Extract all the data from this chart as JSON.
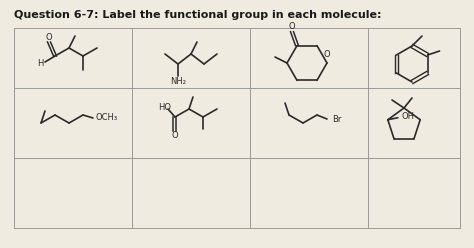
{
  "title_fontsize": 8,
  "title_fontweight": "bold",
  "background_color": "#f0ebe0",
  "line_color": "#999999",
  "text_color": "#1a1a1a",
  "mol_color": "#2a2a2a",
  "fig_width": 4.74,
  "fig_height": 2.48,
  "dpi": 100,
  "header_text": "Question 6-7: Label the functional group in each molecule:",
  "gx": [
    14,
    132,
    250,
    368,
    460
  ],
  "gy": [
    20,
    90,
    160,
    220
  ],
  "labels": {
    "nh2": "NH₂",
    "och3": "OCH₃",
    "ho": "HO",
    "br": "Br",
    "oh": "OH",
    "o_atom": "O",
    "h_atom": "H"
  }
}
